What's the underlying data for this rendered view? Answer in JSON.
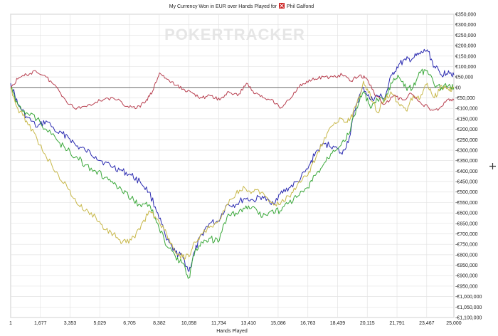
{
  "window": {
    "title": "My Currency Won in EUR over Hands Played for",
    "player": "Phil Galfond"
  },
  "watermark": "POKERTRACKER",
  "chart_data": {
    "type": "line",
    "title": "My Currency Won in EUR over Hands Played for",
    "player": "Phil Galfond",
    "xlabel": "Hands Played",
    "ylabel": "",
    "xlim": [
      1,
      25000
    ],
    "ylim": [
      -1100000,
      350000
    ],
    "grid": true,
    "zero_line": true,
    "x_ticks": [
      1,
      1677,
      3353,
      5029,
      6705,
      8382,
      10058,
      11734,
      13410,
      15086,
      16763,
      18439,
      20115,
      21791,
      23467,
      25000
    ],
    "x_tick_labels": [
      "1",
      "1,677",
      "3,353",
      "5,029",
      "6,705",
      "8,382",
      "10,058",
      "11,734",
      "13,410",
      "15,086",
      "16,763",
      "18,439",
      "20,115",
      "21,791",
      "23,467",
      "25,000"
    ],
    "y_ticks": [
      350000,
      300000,
      250000,
      200000,
      150000,
      100000,
      50000,
      0,
      -50000,
      -100000,
      -150000,
      -200000,
      -250000,
      -300000,
      -350000,
      -400000,
      -450000,
      -500000,
      -550000,
      -600000,
      -650000,
      -700000,
      -750000,
      -800000,
      -850000,
      -900000,
      -950000,
      -1000000,
      -1050000,
      -1100000
    ],
    "y_tick_labels": [
      "€350,000",
      "€300,000",
      "€250,000",
      "€200,000",
      "€150,000",
      "€100,000",
      "€50,000",
      "€0",
      "-€50,000",
      "-€100,000",
      "-€150,000",
      "-€200,000",
      "-€250,000",
      "-€300,000",
      "-€350,000",
      "-€400,000",
      "-€450,000",
      "-€500,000",
      "-€550,000",
      "-€600,000",
      "-€650,000",
      "-€700,000",
      "-€750,000",
      "-€800,000",
      "-€850,000",
      "-€900,000",
      "-€950,000",
      "-€1,000,000",
      "-€1,050,000",
      "-€1,100,000"
    ],
    "series": [
      {
        "color": "#2a2ab0",
        "jitter": 16000,
        "x": [
          1,
          400,
          900,
          1500,
          2000,
          2700,
          3200,
          3700,
          4200,
          4800,
          5300,
          5800,
          6300,
          6800,
          7300,
          7800,
          8300,
          8800,
          9300,
          9700,
          10058,
          10400,
          10800,
          11200,
          11700,
          12200,
          12700,
          13200,
          13700,
          14200,
          14700,
          15200,
          15700,
          16200,
          16763,
          17200,
          17700,
          18200,
          18700,
          19100,
          19500,
          19900,
          20300,
          20700,
          21100,
          21500,
          21900,
          22300,
          22700,
          23100,
          23500,
          23900,
          24300,
          24700,
          25000
        ],
        "y": [
          20000,
          -80000,
          -140000,
          -190000,
          -160000,
          -220000,
          -230000,
          -280000,
          -300000,
          -330000,
          -360000,
          -380000,
          -400000,
          -420000,
          -450000,
          -500000,
          -600000,
          -730000,
          -790000,
          -810000,
          -880000,
          -780000,
          -700000,
          -650000,
          -640000,
          -560000,
          -560000,
          -530000,
          -540000,
          -520000,
          -560000,
          -510000,
          -480000,
          -450000,
          -390000,
          -310000,
          -270000,
          -280000,
          -320000,
          -240000,
          -80000,
          0,
          -60000,
          -40000,
          -50000,
          60000,
          110000,
          130000,
          140000,
          160000,
          180000,
          100000,
          60000,
          80000,
          60000
        ]
      },
      {
        "color": "#3aa83a",
        "jitter": 16000,
        "x": [
          1,
          400,
          900,
          1500,
          2000,
          2700,
          3200,
          3700,
          4200,
          4800,
          5300,
          5800,
          6300,
          6800,
          7300,
          7800,
          8300,
          8800,
          9300,
          9700,
          10058,
          10400,
          10800,
          11200,
          11700,
          12200,
          12700,
          13200,
          13700,
          14200,
          14700,
          15200,
          15700,
          16200,
          16763,
          17200,
          17700,
          18200,
          18700,
          19100,
          19500,
          19900,
          20300,
          20700,
          21100,
          21500,
          21900,
          22300,
          22700,
          23100,
          23500,
          23900,
          24300,
          24700,
          25000
        ],
        "y": [
          0,
          -80000,
          -120000,
          -150000,
          -200000,
          -260000,
          -300000,
          -330000,
          -370000,
          -400000,
          -430000,
          -460000,
          -500000,
          -530000,
          -560000,
          -560000,
          -650000,
          -760000,
          -810000,
          -840000,
          -910000,
          -780000,
          -740000,
          -720000,
          -740000,
          -620000,
          -600000,
          -580000,
          -570000,
          -620000,
          -590000,
          -590000,
          -550000,
          -520000,
          -480000,
          -420000,
          -360000,
          -300000,
          -260000,
          -220000,
          -100000,
          -20000,
          -100000,
          -60000,
          -60000,
          20000,
          50000,
          0,
          0,
          70000,
          80000,
          10000,
          0,
          10000,
          0
        ]
      },
      {
        "color": "#c8b84a",
        "jitter": 14000,
        "x": [
          1,
          400,
          900,
          1500,
          2000,
          2700,
          3200,
          3700,
          4200,
          4800,
          5300,
          5800,
          6300,
          6800,
          7300,
          7800,
          8300,
          8800,
          9300,
          9700,
          10058,
          10400,
          10800,
          11200,
          11700,
          12200,
          12700,
          13200,
          13700,
          14200,
          14700,
          15200,
          15700,
          16200,
          16763,
          17200,
          17700,
          18200,
          18700,
          19100,
          19500,
          19900,
          20300,
          20700,
          21100,
          21500,
          21900,
          22300,
          22700,
          23100,
          23500,
          23900,
          24300,
          24700,
          25000
        ],
        "y": [
          0,
          -100000,
          -160000,
          -250000,
          -330000,
          -420000,
          -480000,
          -550000,
          -590000,
          -620000,
          -680000,
          -700000,
          -740000,
          -730000,
          -680000,
          -590000,
          -630000,
          -700000,
          -790000,
          -810000,
          -810000,
          -740000,
          -700000,
          -670000,
          -640000,
          -560000,
          -510000,
          -480000,
          -500000,
          -500000,
          -550000,
          -560000,
          -520000,
          -460000,
          -420000,
          -340000,
          -240000,
          -180000,
          -150000,
          -160000,
          -90000,
          30000,
          -40000,
          -120000,
          -50000,
          -30000,
          -80000,
          -110000,
          -40000,
          -50000,
          20000,
          -50000,
          10000,
          -10000,
          0
        ]
      },
      {
        "color": "#b84050",
        "jitter": 9000,
        "x": [
          1,
          400,
          900,
          1400,
          2000,
          2600,
          3100,
          3600,
          4200,
          4800,
          5400,
          6000,
          6600,
          7100,
          7600,
          8000,
          8400,
          8800,
          9300,
          9800,
          10300,
          10800,
          11300,
          11800,
          12300,
          12800,
          13300,
          13800,
          14300,
          14800,
          15200,
          15700,
          16200,
          16700,
          17200,
          17700,
          18200,
          18700,
          19200,
          19700,
          20100,
          20600,
          21100,
          21600,
          22100,
          22600,
          23100,
          23600,
          24100,
          24600,
          25000
        ],
        "y": [
          0,
          40000,
          60000,
          80000,
          50000,
          0,
          -60000,
          -100000,
          -90000,
          -70000,
          -50000,
          -60000,
          -90000,
          -100000,
          -70000,
          -20000,
          70000,
          40000,
          10000,
          -10000,
          -30000,
          -50000,
          -40000,
          -60000,
          -20000,
          -40000,
          20000,
          -30000,
          -50000,
          -60000,
          -100000,
          -60000,
          0,
          30000,
          40000,
          50000,
          50000,
          60000,
          30000,
          60000,
          40000,
          -40000,
          -80000,
          -40000,
          -60000,
          -30000,
          -70000,
          -100000,
          -110000,
          -60000,
          -60000
        ]
      }
    ]
  }
}
